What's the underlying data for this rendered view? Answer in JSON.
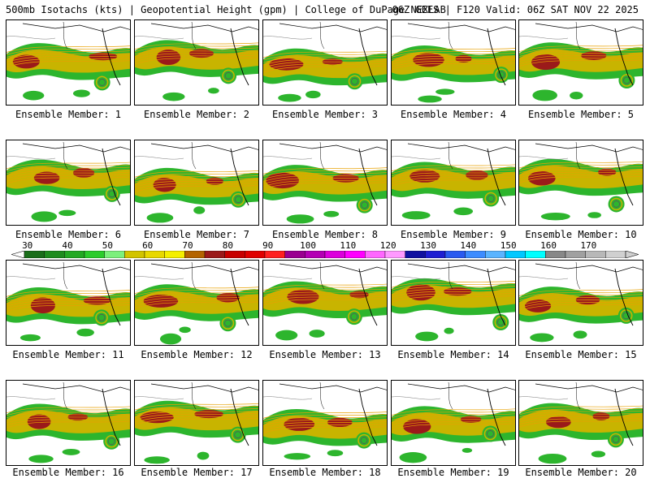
{
  "header": {
    "title": "500mb Isotachs (kts) | Geopotential Height (gpm) | College of DuPage NEXLAB",
    "run": "06Z GEFS | F120 Valid: 06Z SAT NOV 22 2025"
  },
  "legend": {
    "labels": [
      "30",
      "40",
      "50",
      "60",
      "70",
      "80",
      "90",
      "100",
      "110",
      "120",
      "130",
      "140",
      "150",
      "160",
      "170"
    ],
    "colors": [
      "#1a6e1a",
      "#1e8c1e",
      "#23a923",
      "#2ccc2c",
      "#7cf07c",
      "#d2c400",
      "#e8d800",
      "#f5ef00",
      "#b46400",
      "#9b1a1a",
      "#c80000",
      "#e00000",
      "#ff2020",
      "#9a0090",
      "#b400b4",
      "#dc00dc",
      "#ff00ff",
      "#ff66ff",
      "#ff99ff",
      "#1010a0",
      "#1e1ed2",
      "#2a5af0",
      "#3c8cff",
      "#5ab4ff",
      "#00c8ff",
      "#00ffff",
      "#888888",
      "#a0a0a0",
      "#b8b8b8",
      "#d0d0d0"
    ]
  },
  "members": [
    {
      "label": "Ensemble Member: 1"
    },
    {
      "label": "Ensemble Member: 2"
    },
    {
      "label": "Ensemble Member: 3"
    },
    {
      "label": "Ensemble Member: 4"
    },
    {
      "label": "Ensemble Member: 5"
    },
    {
      "label": "Ensemble Member: 6"
    },
    {
      "label": "Ensemble Member: 7"
    },
    {
      "label": "Ensemble Member: 8"
    },
    {
      "label": "Ensemble Member: 9"
    },
    {
      "label": "Ensemble Member: 10"
    },
    {
      "label": "Ensemble Member: 11"
    },
    {
      "label": "Ensemble Member: 12"
    },
    {
      "label": "Ensemble Member: 13"
    },
    {
      "label": "Ensemble Member: 14"
    },
    {
      "label": "Ensemble Member: 15"
    },
    {
      "label": "Ensemble Member: 16"
    },
    {
      "label": "Ensemble Member: 17"
    },
    {
      "label": "Ensemble Member: 18"
    },
    {
      "label": "Ensemble Member: 19"
    },
    {
      "label": "Ensemble Member: 20"
    }
  ]
}
